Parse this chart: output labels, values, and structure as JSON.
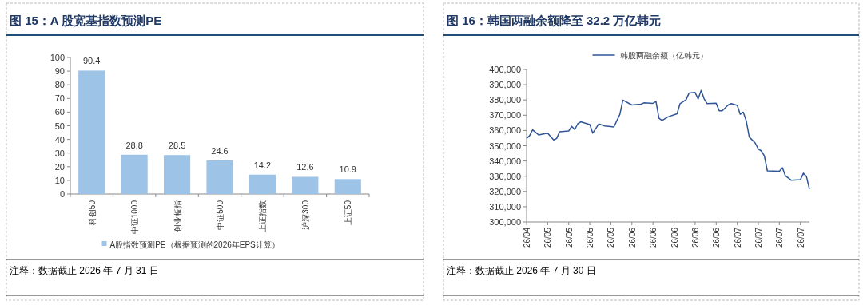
{
  "chart_data": [
    {
      "type": "bar",
      "title": "图 15：A 股宽基指数预测PE",
      "categories": [
        "科创50",
        "中证1000",
        "创业板指",
        "中证500",
        "上证指数",
        "沪深300",
        "上证50"
      ],
      "series": [
        {
          "name": "A股指数预测PE（根据预测的2026年EPS计算）",
          "color": "#9dc3e6",
          "values": [
            90.4,
            28.8,
            28.5,
            24.6,
            14.2,
            12.6,
            10.9
          ]
        }
      ],
      "ylim": [
        0,
        100
      ],
      "yticks": [
        0,
        10,
        20,
        30,
        40,
        50,
        60,
        70,
        80,
        90,
        100
      ],
      "data_labels": true,
      "legend": "bottom",
      "grid": false,
      "annotations": [
        "注释：数据截止 2026 年 7 月 31 日"
      ]
    },
    {
      "type": "line",
      "title": "图 16：韩国两融余额降至 32.2 万亿韩元",
      "series": [
        {
          "name": "韩股两融余额（亿韩元）",
          "color": "#2f5597",
          "x": [
            "2026-04-27",
            "2026-04-28",
            "2026-04-29",
            "2026-05-01",
            "2026-05-04",
            "2026-05-06",
            "2026-05-07",
            "2026-05-08",
            "2026-05-11",
            "2026-05-12",
            "2026-05-13",
            "2026-05-14",
            "2026-05-15",
            "2026-05-18",
            "2026-05-19",
            "2026-05-21",
            "2026-05-23",
            "2026-05-26",
            "2026-05-28",
            "2026-05-29",
            "2026-06-01",
            "2026-06-04",
            "2026-06-05",
            "2026-06-08",
            "2026-06-09",
            "2026-06-10",
            "2026-06-11",
            "2026-06-13",
            "2026-06-16",
            "2026-06-17",
            "2026-06-19",
            "2026-06-20",
            "2026-06-22",
            "2026-06-23",
            "2026-06-24",
            "2026-06-25",
            "2026-06-26",
            "2026-06-29",
            "2026-06-30",
            "2026-07-01",
            "2026-07-03",
            "2026-07-04",
            "2026-07-06",
            "2026-07-07",
            "2026-07-08",
            "2026-07-09",
            "2026-07-10",
            "2026-07-12",
            "2026-07-13",
            "2026-07-14",
            "2026-07-15",
            "2026-07-16",
            "2026-07-20",
            "2026-07-21",
            "2026-07-22",
            "2026-07-24",
            "2026-07-27",
            "2026-07-28",
            "2026-07-29",
            "2026-07-30"
          ],
          "values": [
            354800,
            356600,
            360400,
            357100,
            358300,
            353800,
            354800,
            359200,
            359700,
            362700,
            360600,
            364400,
            365700,
            363900,
            358300,
            364300,
            363000,
            362300,
            370600,
            379900,
            376700,
            377200,
            378100,
            377800,
            379000,
            368000,
            366600,
            368900,
            370900,
            377600,
            380200,
            384600,
            384900,
            380600,
            386300,
            380700,
            377600,
            377900,
            372900,
            372900,
            376700,
            377600,
            376400,
            370600,
            372000,
            366200,
            355700,
            351700,
            347800,
            346600,
            343400,
            333500,
            333300,
            335600,
            330300,
            327300,
            327700,
            332000,
            329800,
            321500
          ]
        }
      ],
      "xlim": [
        "2026-04-27",
        "2026-07-30"
      ],
      "xticks": [
        {
          "value": "2026-04-27",
          "label": "26/04"
        },
        {
          "value": "2026-05-04",
          "label": "26/05"
        },
        {
          "value": "2026-05-11",
          "label": "26/05"
        },
        {
          "value": "2026-05-18",
          "label": "26/05"
        },
        {
          "value": "2026-05-25",
          "label": "26/05"
        },
        {
          "value": "2026-06-01",
          "label": "26/06"
        },
        {
          "value": "2026-06-08",
          "label": "26/06"
        },
        {
          "value": "2026-06-15",
          "label": "26/06"
        },
        {
          "value": "2026-06-22",
          "label": "26/06"
        },
        {
          "value": "2026-06-29",
          "label": "26/06"
        },
        {
          "value": "2026-07-06",
          "label": "26/07"
        },
        {
          "value": "2026-07-13",
          "label": "26/07"
        },
        {
          "value": "2026-07-20",
          "label": "26/07"
        },
        {
          "value": "2026-07-27",
          "label": "26/07"
        }
      ],
      "ylim": [
        300000,
        400000
      ],
      "yticks": [
        {
          "value": 300000,
          "label": "300,000"
        },
        {
          "value": 310000,
          "label": "310,000"
        },
        {
          "value": 320000,
          "label": "320,000"
        },
        {
          "value": 330000,
          "label": "330,000"
        },
        {
          "value": 340000,
          "label": "340,000"
        },
        {
          "value": 350000,
          "label": "350,000"
        },
        {
          "value": 360000,
          "label": "360,000"
        },
        {
          "value": 370000,
          "label": "370,000"
        },
        {
          "value": 380000,
          "label": "380,000"
        },
        {
          "value": 390000,
          "label": "390,000"
        },
        {
          "value": 400000,
          "label": "400,000"
        }
      ],
      "legend": "top",
      "grid": false,
      "marker": "none",
      "line_style": "solid",
      "annotations": [
        "注释：数据截止 2026 年 7 月 30 日"
      ]
    }
  ]
}
